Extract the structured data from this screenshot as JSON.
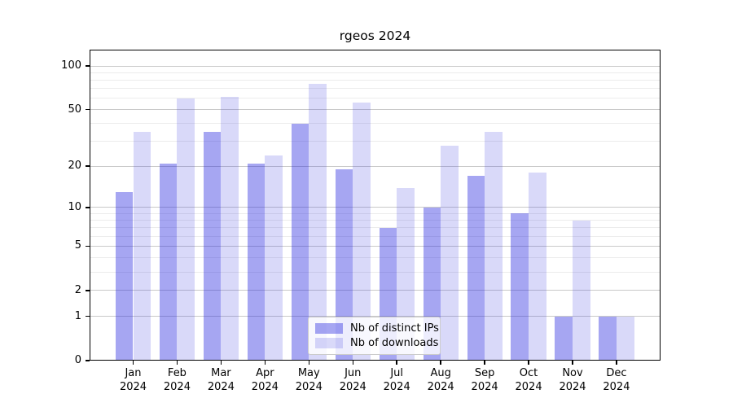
{
  "title": "rgeos 2024",
  "chart_data": {
    "type": "bar",
    "title": "rgeos 2024",
    "x_tick_year": "2024",
    "categories": [
      "Jan",
      "Feb",
      "Mar",
      "Apr",
      "May",
      "Jun",
      "Jul",
      "Aug",
      "Sep",
      "Oct",
      "Nov",
      "Dec"
    ],
    "series": [
      {
        "name": "Nb of distinct IPs",
        "values": [
          13,
          21,
          35,
          21,
          40,
          19,
          7,
          10,
          17,
          9,
          1,
          1
        ],
        "color": "rgba(33,33,222,0.40)"
      },
      {
        "name": "Nb of downloads",
        "values": [
          35,
          60,
          61,
          24,
          75,
          56,
          14,
          28,
          35,
          18,
          8,
          1
        ],
        "color": "rgba(65,65,225,0.20)"
      }
    ],
    "y_scale": "log10(x+1)",
    "y_ticks": [
      0,
      1,
      2,
      5,
      10,
      20,
      50,
      100
    ],
    "y_minor_gridlines": [
      3,
      4,
      6,
      7,
      8,
      9,
      30,
      40,
      60,
      70,
      80,
      90
    ],
    "ylim": [
      0,
      130
    ],
    "grid": true,
    "legend_position": "lower-center"
  },
  "colors": {
    "background": "#ffffff",
    "spine": "#000000",
    "major_grid": "#c9c9c9",
    "minor_grid": "#ececec",
    "tick_label": "#000000",
    "legend_border": "#cccccc",
    "legend_bg": "rgba(255,255,255,0.8)"
  }
}
